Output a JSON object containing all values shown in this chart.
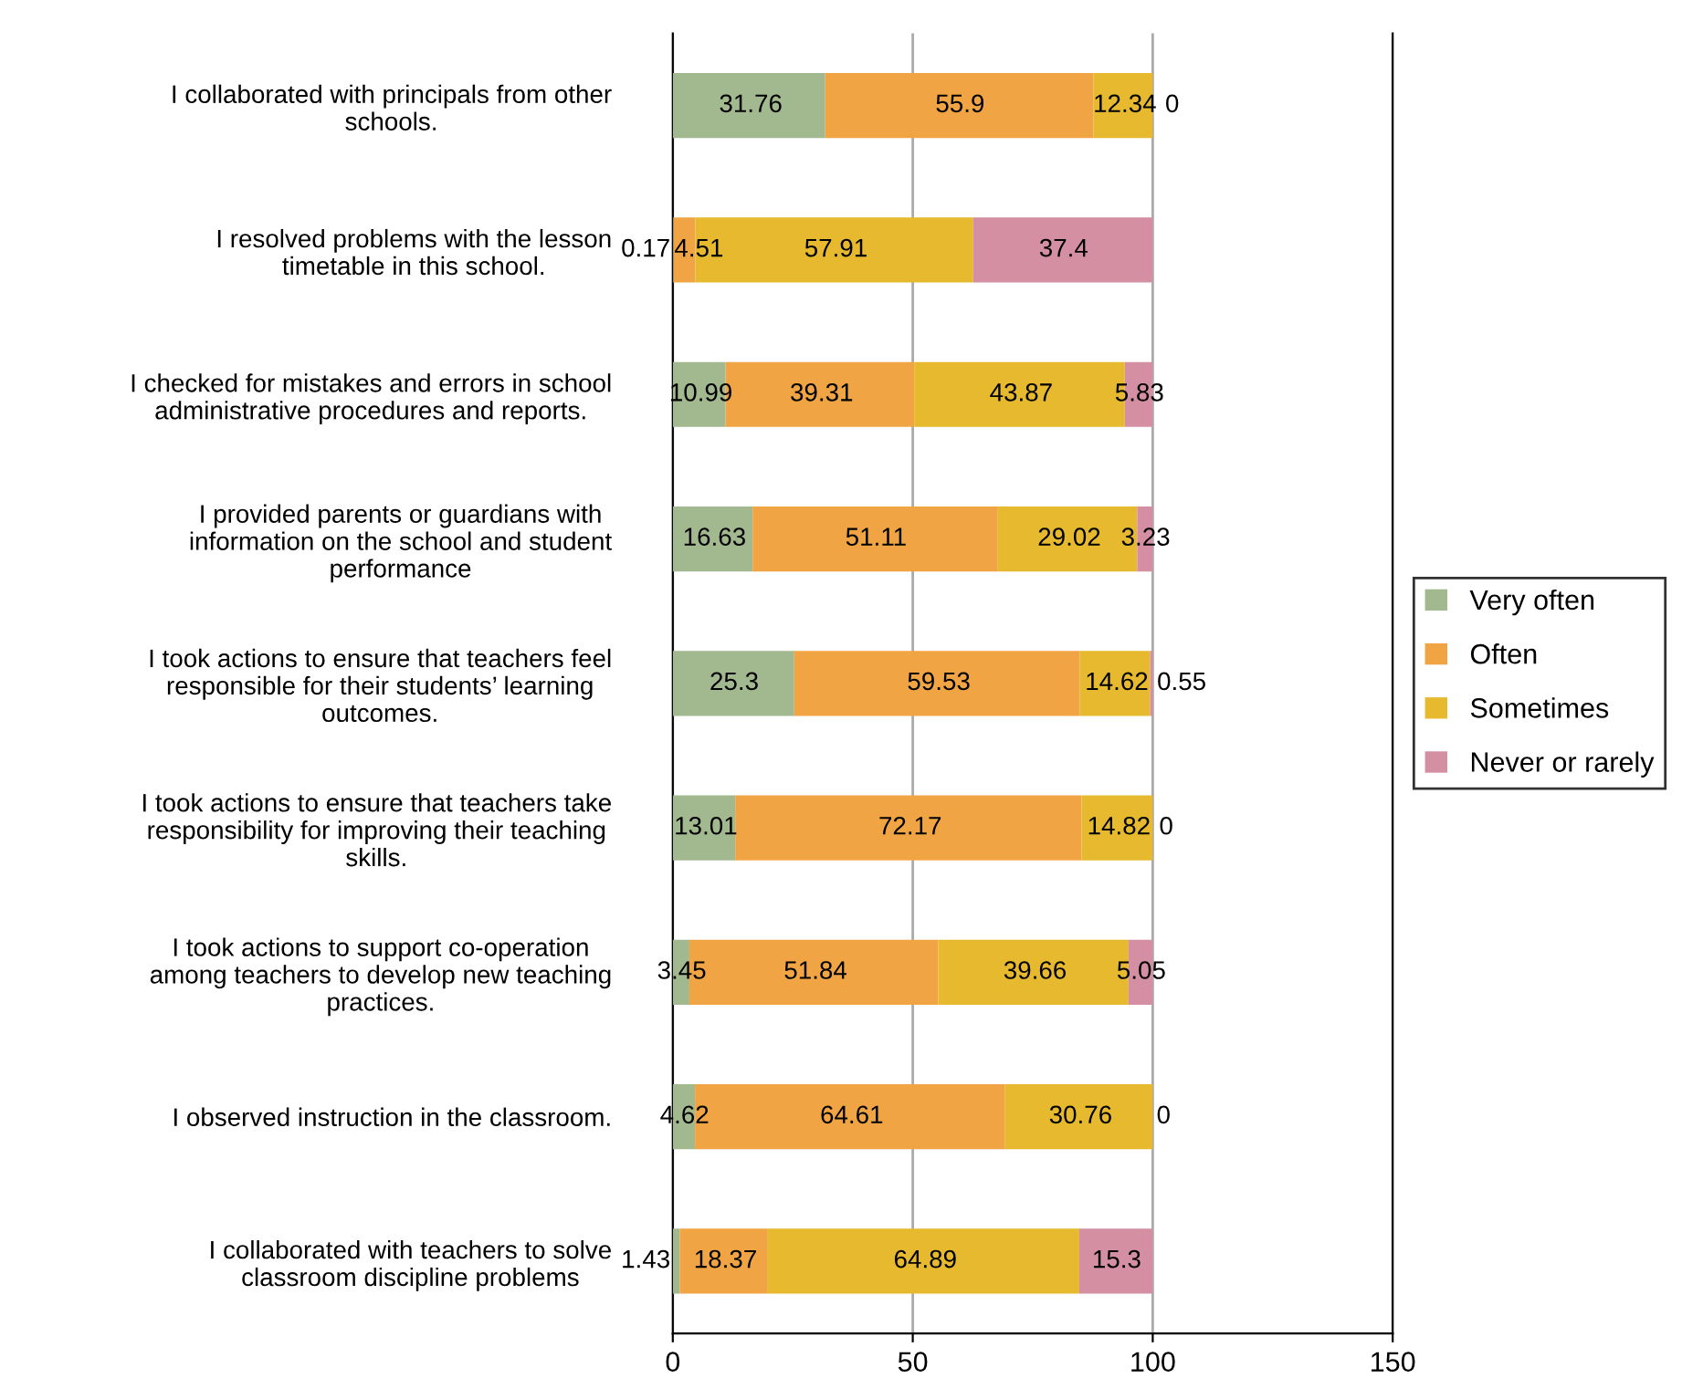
{
  "chart_data": {
    "type": "bar",
    "orientation": "horizontal",
    "stacked": true,
    "data_labels": true,
    "grid": "x",
    "legend": "right",
    "categories": [
      "I collaborated with principals from other schools.",
      "I resolved problems with the lesson timetable in this school.",
      "I checked for mistakes and errors in school administrative procedures and reports.",
      "I provided parents or guardians with information on the school and student performance",
      "I took actions to ensure that teachers feel responsible for their students’ learning outcomes.",
      "I took actions to ensure that teachers take responsibility for improving their teaching skills.",
      "I took actions to support co-operation among teachers to develop new teaching practices.",
      "I observed instruction in the classroom.",
      "I collaborated with teachers to solve classroom discipline problems"
    ],
    "series": [
      {
        "name": "Very often",
        "color": "#a2b88e",
        "values": [
          31.76,
          0.17,
          10.99,
          16.63,
          25.3,
          13.01,
          3.45,
          4.62,
          1.43
        ]
      },
      {
        "name": "Often",
        "color": "#f0a444",
        "values": [
          55.9,
          4.51,
          39.31,
          51.11,
          59.53,
          72.17,
          51.84,
          64.61,
          18.37
        ]
      },
      {
        "name": "Sometimes",
        "color": "#e6b92e",
        "values": [
          12.34,
          57.91,
          43.87,
          29.02,
          14.62,
          14.82,
          39.66,
          30.76,
          64.89
        ]
      },
      {
        "name": "Never or rarely",
        "color": "#d48fa2",
        "values": [
          0,
          37.4,
          5.83,
          3.23,
          0.55,
          0,
          5.05,
          0,
          15.3
        ]
      }
    ],
    "xlim": [
      0,
      150
    ],
    "xticks": [
      0,
      50,
      100,
      150
    ]
  }
}
